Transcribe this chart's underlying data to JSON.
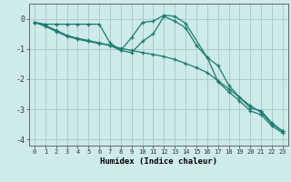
{
  "xlabel": "Humidex (Indice chaleur)",
  "ylabel": "",
  "xlim": [
    -0.5,
    23.5
  ],
  "ylim": [
    -4.2,
    0.5
  ],
  "yticks": [
    0,
    -1,
    -2,
    -3,
    -4
  ],
  "xticks": [
    0,
    1,
    2,
    3,
    4,
    5,
    6,
    7,
    8,
    9,
    10,
    11,
    12,
    13,
    14,
    15,
    16,
    17,
    18,
    19,
    20,
    21,
    22,
    23
  ],
  "background_color": "#ceeaea",
  "grid_color": "#aacccc",
  "line_color": "#1a7a6e",
  "series1_x": [
    0,
    1,
    2,
    3,
    4,
    5,
    6,
    7,
    8,
    9,
    10,
    11,
    12,
    13,
    14,
    16,
    17,
    18,
    19,
    20,
    21,
    22,
    23
  ],
  "series1_y": [
    -0.12,
    -0.18,
    -0.18,
    -0.18,
    -0.18,
    -0.18,
    -0.18,
    -0.8,
    -1.05,
    -0.62,
    -0.12,
    -0.08,
    0.12,
    0.08,
    -0.15,
    -1.28,
    -1.55,
    -2.2,
    -2.6,
    -2.95,
    -3.05,
    -3.45,
    -3.72
  ],
  "series2_x": [
    0,
    1,
    2,
    3,
    4,
    5,
    6,
    7,
    8,
    9,
    10,
    11,
    12,
    13,
    14,
    15,
    16,
    17,
    18,
    19,
    20,
    21,
    22,
    23
  ],
  "series2_y": [
    -0.12,
    -0.25,
    -0.42,
    -0.58,
    -0.68,
    -0.75,
    -0.82,
    -0.88,
    -0.98,
    -1.05,
    -1.12,
    -1.18,
    -1.25,
    -1.35,
    -1.48,
    -1.62,
    -1.78,
    -2.05,
    -2.32,
    -2.6,
    -2.88,
    -3.1,
    -3.48,
    -3.72
  ],
  "series3_x": [
    0,
    1,
    2,
    3,
    4,
    5,
    6,
    7,
    8,
    9,
    10,
    11,
    12,
    13,
    14,
    15,
    16,
    17,
    18,
    19,
    20,
    21,
    22,
    23
  ],
  "series3_y": [
    -0.12,
    -0.22,
    -0.38,
    -0.55,
    -0.65,
    -0.72,
    -0.8,
    -0.88,
    -1.05,
    -1.12,
    -0.75,
    -0.5,
    0.08,
    -0.08,
    -0.3,
    -0.88,
    -1.28,
    -2.08,
    -2.42,
    -2.72,
    -3.05,
    -3.18,
    -3.55,
    -3.78
  ]
}
